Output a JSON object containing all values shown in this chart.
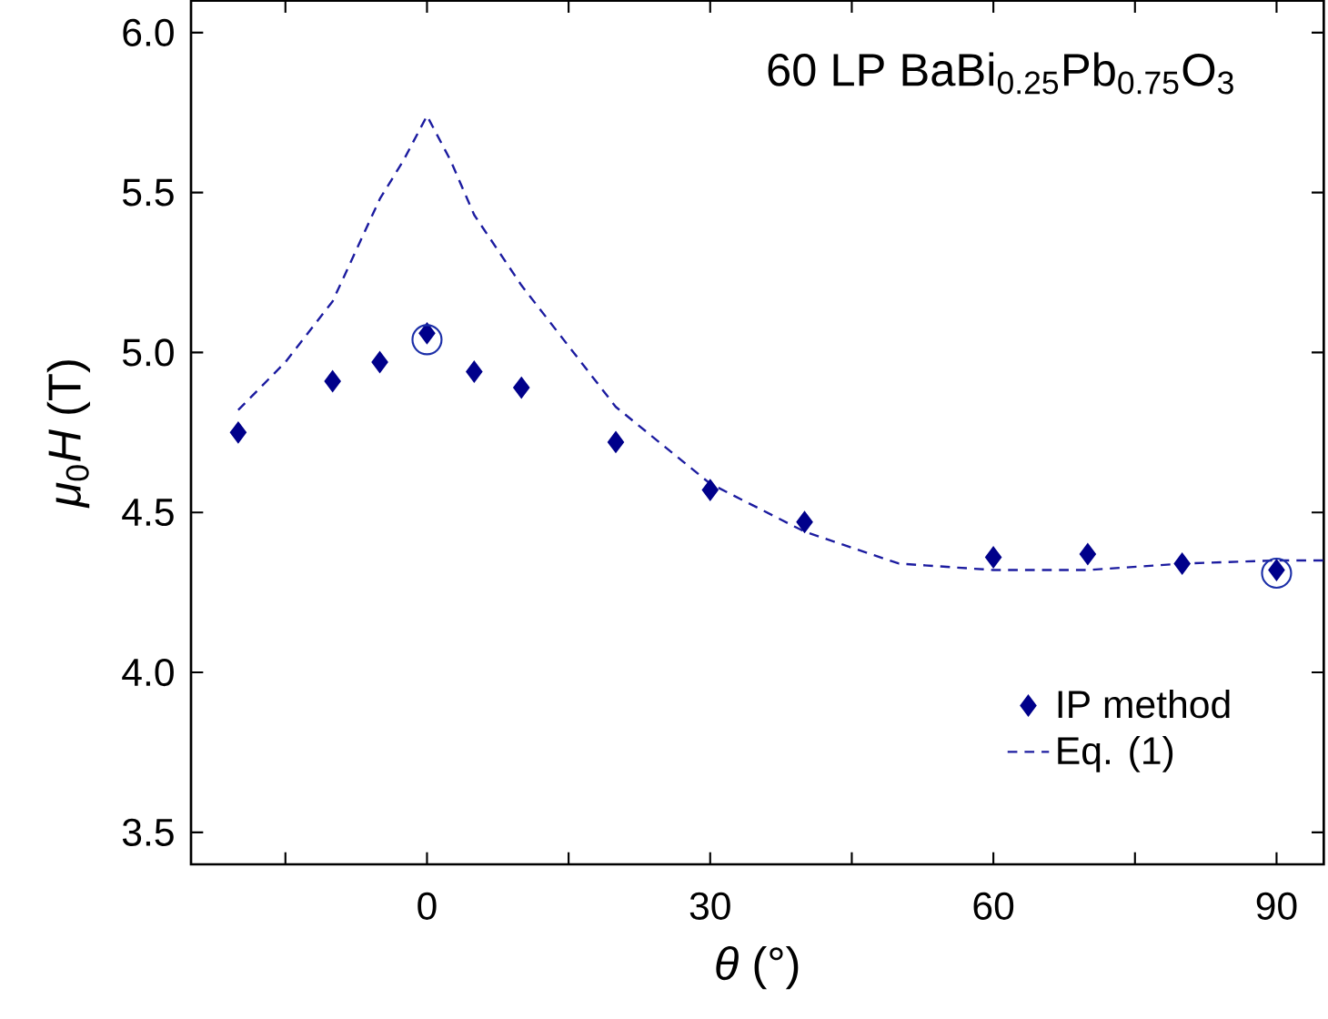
{
  "chart_data": {
    "type": "scatter",
    "xlabel": "*θ* (°)",
    "ylabel": "*μ*$_{0}$*H* (T)",
    "annotations": [
      "60 LP BaBi$_{0.25}$Pb$_{0.75}$O$_{3}$"
    ],
    "xlim": [
      -25,
      95
    ],
    "ylim": [
      3.4,
      6.1
    ],
    "xticks": [
      {
        "value": -15,
        "label": null
      },
      0,
      {
        "value": 15,
        "label": null
      },
      30,
      {
        "value": 45,
        "label": null
      },
      60,
      {
        "value": 75,
        "label": null
      },
      90
    ],
    "yticks": [
      {
        "value": 3.5,
        "label": "3.5"
      },
      {
        "value": 4.0,
        "label": "4.0"
      },
      {
        "value": 4.5,
        "label": "4.5"
      },
      {
        "value": 5.0,
        "label": "5.0"
      },
      {
        "value": 5.5,
        "label": "5.5"
      },
      {
        "value": 6.0,
        "label": "6.0"
      }
    ],
    "legend": "bottom right",
    "grid": false,
    "series": [
      {
        "name": "IP method",
        "marker": "diamond",
        "color": "#00008b",
        "x": [
          -20,
          -10,
          -5,
          0,
          5,
          10,
          20,
          30,
          40,
          60,
          70,
          80,
          90
        ],
        "values": [
          4.75,
          4.91,
          4.97,
          5.06,
          4.94,
          4.89,
          4.72,
          4.57,
          4.47,
          4.36,
          4.37,
          4.34,
          4.32
        ]
      },
      {
        "name": "Eq. (1)",
        "type": "line",
        "line_style": "dashed",
        "marker": "none",
        "color": "#1c1ca0",
        "x": [
          -20,
          -15,
          -10,
          -5,
          -2.5,
          0,
          2.5,
          5,
          10,
          20,
          30,
          40,
          50,
          60,
          70,
          80,
          90,
          95
        ],
        "values": [
          4.82,
          4.97,
          5.16,
          5.48,
          5.6,
          5.74,
          5.6,
          5.43,
          5.21,
          4.83,
          4.59,
          4.44,
          4.34,
          4.32,
          4.32,
          4.34,
          4.35,
          4.35
        ]
      },
      {
        "marker": "circle",
        "color": "#1c2fa8",
        "x": [
          0,
          90
        ],
        "values": [
          5.04,
          4.31
        ]
      }
    ]
  }
}
